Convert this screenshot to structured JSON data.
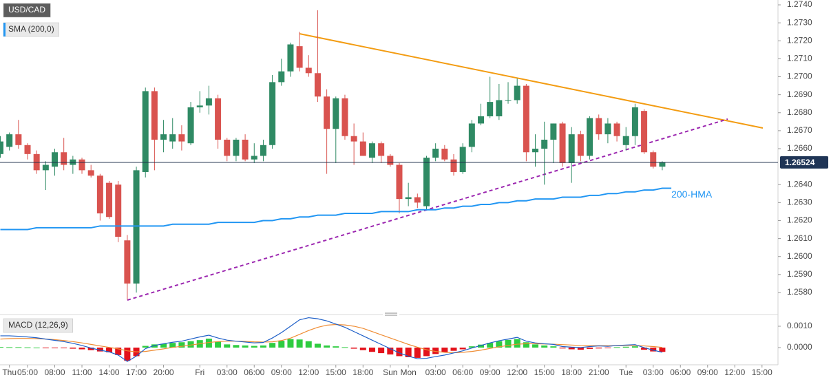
{
  "chart_data": [
    {
      "type": "candlestick",
      "title": "USD/CAD",
      "categories": [
        null,
        "Thu",
        null,
        "05:00",
        null,
        null,
        "08:00",
        null,
        null,
        "11:00",
        null,
        null,
        "14:00",
        null,
        null,
        "17:00",
        null,
        null,
        "20:00",
        null,
        null,
        null,
        "Fri",
        null,
        null,
        "03:00",
        null,
        null,
        "06:00",
        null,
        null,
        "09:00",
        null,
        null,
        "12:00",
        null,
        null,
        "15:00",
        null,
        null,
        "18:00",
        null,
        null,
        "Sun",
        null,
        "Mon",
        null,
        null,
        "03:00",
        null,
        null,
        "06:00",
        null,
        null,
        "09:00",
        null,
        null,
        "12:00",
        null,
        null,
        "15:00",
        null,
        null,
        "18:00",
        null,
        null,
        "21:00",
        null,
        null,
        "Tue",
        null,
        null,
        "03:00",
        null,
        null,
        "06:00",
        null,
        null,
        "09:00",
        null,
        null,
        "12:00",
        null,
        null,
        "15:00",
        null
      ],
      "open": [
        1.2657,
        1.2661,
        1.2668,
        1.2662,
        1.2657,
        1.2648,
        1.265,
        1.2658,
        1.2651,
        1.2654,
        1.2648,
        1.2645,
        1.2641,
        1.264,
        1.2609,
        1.2585,
        1.2647,
        1.2692,
        1.2665,
        1.2664,
        1.2668,
        1.2663,
        1.2683,
        1.2684,
        1.2688,
        1.2665,
        1.2656,
        1.2665,
        1.2654,
        1.2656,
        1.2662,
        1.2697,
        1.2703,
        1.2717,
        1.2705,
        1.2702,
        1.2689,
        1.2671,
        1.2688,
        1.2667,
        1.2664,
        1.2655,
        1.2663,
        1.2656,
        1.2651,
        1.2632,
        1.2633,
        1.2628,
        1.2655,
        1.266,
        1.2654,
        1.2647,
        1.2661,
        1.2674,
        1.2678,
        1.2678,
        1.2687,
        1.2687,
        1.2695,
        1.2658,
        1.266,
        1.2665,
        1.2674,
        1.2652,
        1.2668,
        1.2656,
        1.2677,
        1.2668,
        1.2674,
        1.2662,
        1.2667,
        1.2681,
        1.2658,
        1.265,
        null,
        null,
        null,
        null,
        null,
        null,
        null,
        null,
        null,
        null,
        null,
        null
      ],
      "high": [
        1.2667,
        1.2669,
        1.2676,
        1.2663,
        1.2659,
        1.2653,
        1.266,
        1.2666,
        1.2656,
        1.2655,
        1.2651,
        1.2646,
        1.2642,
        1.2642,
        1.2612,
        1.265,
        1.2694,
        1.2694,
        1.2676,
        1.2677,
        1.2673,
        1.2686,
        1.2692,
        1.2695,
        1.269,
        1.2666,
        1.2666,
        1.2668,
        1.2663,
        1.2665,
        1.2701,
        1.271,
        1.2719,
        1.2725,
        1.2712,
        1.2737,
        1.2693,
        1.2689,
        1.269,
        1.2674,
        1.2669,
        1.2664,
        1.2664,
        1.2657,
        1.2652,
        1.2641,
        1.2635,
        1.2656,
        1.2663,
        1.2662,
        1.2657,
        1.2663,
        1.2676,
        1.2685,
        1.27,
        1.2696,
        1.2697,
        1.2699,
        1.2696,
        1.2668,
        1.2675,
        1.2674,
        1.2675,
        1.2672,
        1.267,
        1.2678,
        1.2679,
        1.2677,
        1.2675,
        1.2672,
        1.2685,
        1.2682,
        1.2659,
        1.2653,
        null,
        null,
        null,
        null,
        null,
        null,
        null,
        null,
        null,
        null,
        null,
        null
      ],
      "low": [
        1.2655,
        1.2659,
        1.266,
        1.2654,
        1.2646,
        1.2637,
        1.2645,
        1.2648,
        1.2646,
        1.2646,
        1.2644,
        1.262,
        1.2621,
        1.2608,
        1.2576,
        1.258,
        1.2644,
        1.2648,
        1.2658,
        1.266,
        1.2659,
        1.2662,
        1.268,
        1.2679,
        1.266,
        1.2653,
        1.2653,
        1.2653,
        1.2652,
        1.2653,
        1.266,
        1.2695,
        1.27,
        1.2703,
        1.27,
        1.2686,
        1.2646,
        1.2652,
        1.2665,
        1.2651,
        1.2656,
        1.2652,
        1.2652,
        1.265,
        1.2624,
        1.2628,
        1.2627,
        1.2626,
        1.2653,
        1.2653,
        1.2645,
        1.2646,
        1.2658,
        1.2673,
        1.2677,
        1.2676,
        1.2685,
        1.2685,
        1.2653,
        1.265,
        1.264,
        1.2652,
        1.265,
        1.2641,
        1.2653,
        1.2654,
        1.2665,
        1.2663,
        1.2664,
        1.2659,
        1.2662,
        1.2657,
        1.2649,
        1.2648,
        null,
        null,
        null,
        null,
        null,
        null,
        null,
        null,
        null,
        null,
        null,
        null
      ],
      "close": [
        1.2664,
        1.2668,
        1.2662,
        1.2657,
        1.2648,
        1.2651,
        1.2658,
        1.2651,
        1.2654,
        1.2648,
        1.2645,
        1.2624,
        1.2622,
        1.2611,
        1.2585,
        1.2648,
        1.2692,
        1.2665,
        1.2668,
        1.2668,
        1.2664,
        1.2683,
        1.2684,
        1.2688,
        1.2665,
        1.2656,
        1.2665,
        1.2654,
        1.2656,
        1.2662,
        1.2697,
        1.2703,
        1.2718,
        1.2705,
        1.2702,
        1.2689,
        1.2671,
        1.2688,
        1.2667,
        1.2664,
        1.2656,
        1.2663,
        1.2656,
        1.2651,
        1.2632,
        1.2633,
        1.263,
        1.2655,
        1.266,
        1.2654,
        1.2647,
        1.2661,
        1.2674,
        1.2678,
        1.2686,
        1.2687,
        1.2687,
        1.2695,
        1.2658,
        1.266,
        1.2665,
        1.2674,
        1.2652,
        1.2668,
        1.2656,
        1.2677,
        1.2668,
        1.2674,
        1.2667,
        1.2667,
        1.2683,
        1.2658,
        1.265,
        1.26524,
        null,
        null,
        null,
        null,
        null,
        null,
        null,
        null,
        null,
        null,
        null,
        null
      ],
      "up_color": "#2f8a64",
      "down_color": "#d9534f",
      "last_price": 1.26524,
      "overlay": {
        "name": "SMA (200,0)",
        "color": "#2196f3",
        "annotation": "200-HMA",
        "values": [
          1.2615,
          1.2615,
          1.2615,
          1.2615,
          1.2616,
          1.2616,
          1.2616,
          1.2616,
          1.2616,
          1.2616,
          1.2616,
          1.2617,
          1.2617,
          1.2617,
          1.2617,
          1.2617,
          1.2617,
          1.2617,
          1.2617,
          1.2618,
          1.2618,
          1.2618,
          1.2618,
          1.2618,
          1.2619,
          1.2619,
          1.2619,
          1.2619,
          1.2619,
          1.262,
          1.262,
          1.2621,
          1.2621,
          1.2622,
          1.2622,
          1.2623,
          1.2623,
          1.2623,
          1.2624,
          1.2624,
          1.2624,
          1.2624,
          1.2625,
          1.2625,
          1.2625,
          1.2625,
          1.2626,
          1.2626,
          1.2626,
          1.2627,
          1.2627,
          1.2628,
          1.2628,
          1.2629,
          1.2629,
          1.263,
          1.263,
          1.2631,
          1.2631,
          1.2632,
          1.2632,
          1.2632,
          1.2633,
          1.2633,
          1.2633,
          1.2634,
          1.2634,
          1.2635,
          1.2635,
          1.2636,
          1.2636,
          1.2637,
          1.2637,
          1.2638,
          1.2638,
          null,
          null,
          null,
          null,
          null,
          null,
          null,
          null,
          null,
          null,
          null
        ]
      },
      "ylim": [
        1.25685,
        1.27427
      ],
      "yticks": [
        {
          "value": 1.258,
          "label": "1.2580"
        },
        {
          "value": 1.259,
          "label": "1.2590"
        },
        {
          "value": 1.26,
          "label": "1.2600"
        },
        {
          "value": 1.261,
          "label": "1.2610"
        },
        {
          "value": 1.262,
          "label": "1.2620"
        },
        {
          "value": 1.263,
          "label": "1.2630"
        },
        {
          "value": 1.264,
          "label": "1.2640"
        },
        {
          "value": 1.266,
          "label": "1.2660"
        },
        {
          "value": 1.267,
          "label": "1.2670"
        },
        {
          "value": 1.268,
          "label": "1.2680"
        },
        {
          "value": 1.269,
          "label": "1.2690"
        },
        {
          "value": 1.27,
          "label": "1.2700"
        },
        {
          "value": 1.271,
          "label": "1.2710"
        },
        {
          "value": 1.272,
          "label": "1.2720"
        },
        {
          "value": 1.273,
          "label": "1.2730"
        },
        {
          "value": 1.274,
          "label": "1.2740"
        }
      ]
    },
    {
      "type": "macd",
      "title": "MACD (12,26,9)",
      "histogram": {
        "up_color": "#2ecc40",
        "down_color": "#e3121b",
        "values": [
          3e-05,
          2e-05,
          2e-05,
          1e-05,
          0,
          -2e-05,
          -3e-05,
          -3e-05,
          -5e-05,
          -8e-05,
          -0.00012,
          -0.00018,
          -0.00022,
          -0.00035,
          -0.00062,
          -0.0004,
          8e-05,
          0.00015,
          0.00018,
          0.00022,
          0.00025,
          0.0003,
          0.00035,
          0.00042,
          0.00028,
          0.00015,
          0.00012,
          0.0001,
          8e-05,
          0.0001,
          0.00022,
          0.00032,
          0.0004,
          0.00038,
          0.0003,
          0.00018,
          0.0001,
          6e-05,
          2e-05,
          -5e-05,
          -0.00012,
          -0.0002,
          -0.00026,
          -0.00032,
          -0.0004,
          -0.00045,
          -0.00048,
          -0.0004,
          -0.0003,
          -0.00022,
          -0.00015,
          -8e-05,
          6e-05,
          0.00014,
          0.00022,
          0.0003,
          0.00036,
          0.0004,
          0.00025,
          0.00015,
          0.0001,
          6e-05,
          -4e-05,
          -8e-05,
          -0.0001,
          -6e-05,
          -4e-05,
          -2e-05,
          2e-05,
          4e-05,
          6e-05,
          -0.0001,
          -0.00018,
          -0.0002,
          null,
          null,
          null,
          null,
          null,
          null,
          null,
          null,
          null,
          null,
          null,
          null
        ]
      },
      "macd": {
        "color": "#1e5fc8",
        "values": [
          0.00055,
          0.00055,
          0.00053,
          0.0005,
          0.00046,
          0.0004,
          0.00034,
          0.00028,
          0.0002,
          0.0001,
          -2e-05,
          -0.00012,
          -0.0002,
          -0.00035,
          -0.00065,
          -0.0004,
          -5e-05,
          0.0001,
          0.00018,
          0.00025,
          0.0003,
          0.0004,
          0.0005,
          0.00058,
          0.00045,
          0.00035,
          0.0003,
          0.00026,
          0.00022,
          0.00024,
          0.00045,
          0.0007,
          0.001,
          0.0013,
          0.0014,
          0.00135,
          0.00125,
          0.0011,
          0.00095,
          0.00075,
          0.00055,
          0.00035,
          0.00015,
          -5e-05,
          -0.00025,
          -0.0004,
          -0.00052,
          -0.0005,
          -0.00042,
          -0.00035,
          -0.00025,
          -0.00015,
          -2e-05,
          0.0001,
          0.00022,
          0.00032,
          0.0004,
          0.00048,
          0.0003,
          0.00022,
          0.00018,
          0.00015,
          5e-05,
          2e-05,
          0,
          5e-05,
          8e-05,
          6e-05,
          0.0001,
          0.00012,
          0.00014,
          0,
          -0.00012,
          -0.00022,
          null,
          null,
          null,
          null,
          null,
          null,
          null,
          null,
          null,
          null,
          null,
          null
        ]
      },
      "signal": {
        "color": "#ef8c33",
        "values": [
          0.0004,
          0.00042,
          0.00043,
          0.00043,
          0.00042,
          0.0004,
          0.00037,
          0.00033,
          0.00028,
          0.00022,
          0.00015,
          8e-05,
          1e-05,
          -6e-05,
          -0.00015,
          -0.0002,
          -0.00018,
          -0.00012,
          -6e-05,
          1e-05,
          6e-05,
          0.00012,
          0.00018,
          0.00024,
          0.00028,
          0.0003,
          0.0003,
          0.00029,
          0.00027,
          0.00026,
          0.00027,
          0.00033,
          0.00044,
          0.00062,
          0.0008,
          0.00095,
          0.00105,
          0.00108,
          0.00106,
          0.001,
          0.0009,
          0.00075,
          0.0006,
          0.00045,
          0.0003,
          0.00015,
          2e-05,
          -0.0001,
          -0.00018,
          -0.00022,
          -0.00024,
          -0.00022,
          -0.00018,
          -0.00012,
          -4e-05,
          4e-05,
          0.0001,
          0.00016,
          0.00018,
          0.00018,
          0.00017,
          0.00016,
          0.00014,
          0.00012,
          0.0001,
          9e-05,
          9e-05,
          9e-05,
          9e-05,
          0.0001,
          0.0001,
          8e-05,
          5e-05,
          1e-05,
          null,
          null,
          null,
          null,
          null,
          null,
          null,
          null,
          null,
          null,
          null,
          null
        ]
      },
      "ylim": [
        -0.00074,
        0.00145
      ],
      "yticks": [
        {
          "value": 0.001,
          "label": "0.0010"
        },
        {
          "value": 0,
          "label": "0.0000"
        }
      ]
    }
  ]
}
